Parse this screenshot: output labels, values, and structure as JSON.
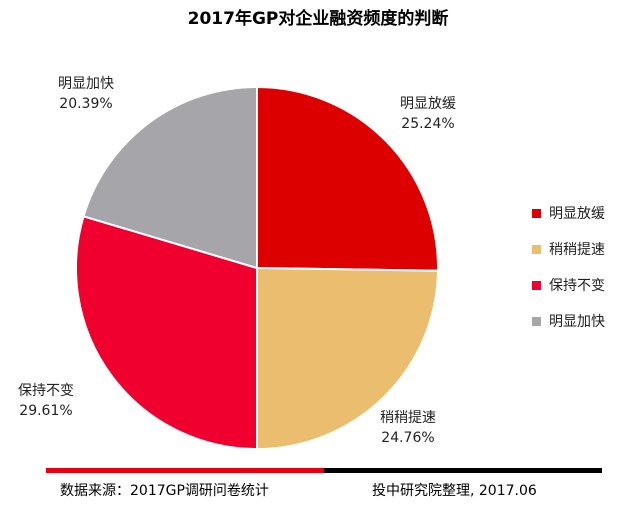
{
  "chart_data": {
    "type": "pie",
    "title": "2017年GP对企业融资频度的判断",
    "slices": [
      {
        "name": "明显放缓",
        "value": 25.24,
        "label": "25.24%",
        "color": "#dc0000"
      },
      {
        "name": "稍稍提速",
        "value": 24.76,
        "label": "24.76%",
        "color": "#ebbd6e"
      },
      {
        "name": "保持不变",
        "value": 29.61,
        "label": "29.61%",
        "color": "#f0002f"
      },
      {
        "name": "明显加快",
        "value": 20.39,
        "label": "20.39%",
        "color": "#a6a6aa"
      }
    ],
    "legend": [
      "明显放缓",
      "稍稍提速",
      "保持不变",
      "明显加快"
    ],
    "legend_position": "right"
  },
  "footer": {
    "source": "数据来源：2017GP调研问卷统计",
    "credit": "投中研究院整理, 2017.06"
  }
}
